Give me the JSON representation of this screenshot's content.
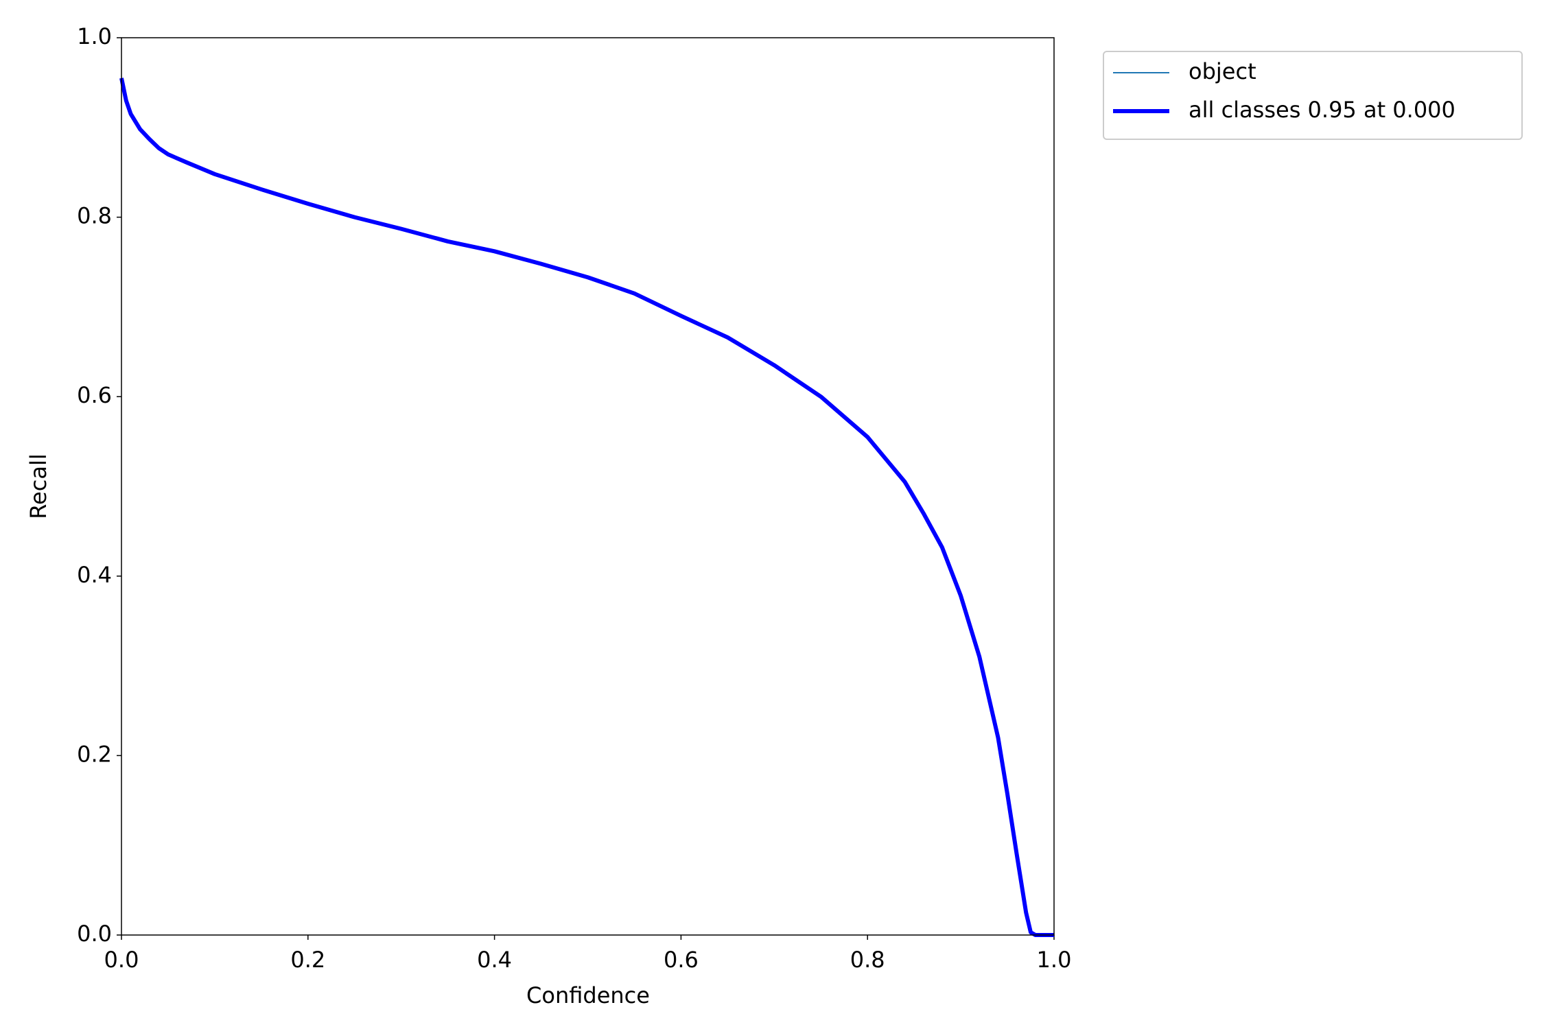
{
  "chart_data": {
    "type": "line",
    "xlabel": "Confidence",
    "ylabel": "Recall",
    "x": [
      0.0,
      0.005,
      0.01,
      0.02,
      0.03,
      0.04,
      0.05,
      0.07,
      0.1,
      0.15,
      0.2,
      0.25,
      0.3,
      0.35,
      0.4,
      0.45,
      0.5,
      0.55,
      0.6,
      0.65,
      0.7,
      0.75,
      0.8,
      0.82,
      0.84,
      0.86,
      0.88,
      0.9,
      0.92,
      0.94,
      0.95,
      0.96,
      0.97,
      0.975,
      0.98,
      1.0
    ],
    "series": [
      {
        "name": "object",
        "color": "#1f77b4",
        "linewidth": 2,
        "values": [
          0.955,
          0.93,
          0.915,
          0.898,
          0.887,
          0.877,
          0.87,
          0.861,
          0.848,
          0.831,
          0.815,
          0.8,
          0.787,
          0.773,
          0.762,
          0.748,
          0.733,
          0.715,
          0.69,
          0.666,
          0.635,
          0.6,
          0.555,
          0.53,
          0.505,
          0.47,
          0.432,
          0.378,
          0.31,
          0.22,
          0.157,
          0.09,
          0.025,
          0.003,
          0,
          0
        ]
      },
      {
        "name": "all classes 0.95 at 0.000",
        "color": "#0000ff",
        "linewidth": 6,
        "values": [
          0.955,
          0.93,
          0.915,
          0.898,
          0.887,
          0.877,
          0.87,
          0.861,
          0.848,
          0.831,
          0.815,
          0.8,
          0.787,
          0.773,
          0.762,
          0.748,
          0.733,
          0.715,
          0.69,
          0.666,
          0.635,
          0.6,
          0.555,
          0.53,
          0.505,
          0.47,
          0.432,
          0.378,
          0.31,
          0.22,
          0.157,
          0.09,
          0.025,
          0.003,
          0,
          0
        ]
      }
    ],
    "xlim": [
      0,
      1
    ],
    "ylim": [
      0,
      1
    ],
    "xticks": [
      {
        "value": 0,
        "label": "0.0"
      },
      0.2,
      0.4,
      0.6,
      0.8,
      {
        "value": 1,
        "label": "1.0"
      }
    ],
    "yticks": [
      {
        "value": 0,
        "label": "0.0"
      },
      0.2,
      0.4,
      0.6,
      0.8,
      {
        "value": 1,
        "label": "1.0"
      }
    ],
    "grid": false,
    "legend": "outside upper right"
  }
}
